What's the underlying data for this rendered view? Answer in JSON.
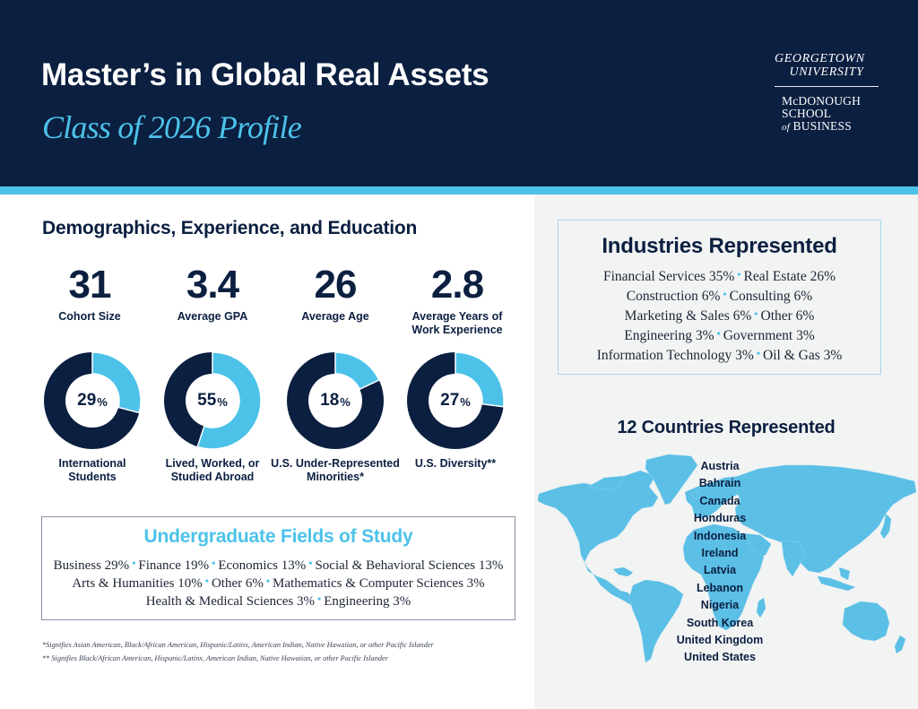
{
  "header": {
    "title": "Master’s in Global Real Assets",
    "subtitle": "Class of 2026 Profile",
    "logo": {
      "university_line1": "GEORGETOWN",
      "university_line2": "UNIVERSITY",
      "school_line1": "McDONOUGH",
      "school_line2": "SCHOOL",
      "school_line3_of": "of",
      "school_line3": "BUSINESS"
    }
  },
  "colors": {
    "navy": "#0b1f40",
    "accent_blue": "#4cc2e9",
    "panel_grey": "#f2f3f3"
  },
  "demographics": {
    "title": "Demographics, Experience, and Education",
    "stats": [
      {
        "value": "31",
        "label": "Cohort Size"
      },
      {
        "value": "3.4",
        "label": "Average GPA"
      },
      {
        "value": "26",
        "label": "Average Age"
      },
      {
        "value": "2.8",
        "label_line1": "Average Years of",
        "label_line2": "Work Experience"
      }
    ],
    "donuts": [
      {
        "value": "29",
        "unit": "%",
        "label_line1": "International",
        "label_line2": "Students"
      },
      {
        "value": "55",
        "unit": "%",
        "label_line1": "Lived, Worked, or",
        "label_line2": "Studied Abroad"
      },
      {
        "value": "18",
        "unit": "%",
        "label_line1": "U.S. Under-Represented",
        "label_line2": "Minorities*"
      },
      {
        "value": "27",
        "unit": "%",
        "label_line1": "U.S. Diversity**",
        "label_line2": ""
      }
    ]
  },
  "chart_data": {
    "type": "pie",
    "variant": "donut",
    "title": "Demographics, Experience, and Education",
    "categories": [
      "International Students",
      "Lived, Worked, or Studied Abroad",
      "U.S. Under-Represented Minorities*",
      "U.S. Diversity**"
    ],
    "values": [
      29,
      55,
      18,
      27
    ],
    "unit": "%",
    "highlight_color": "#4cc2e9",
    "remainder_color": "#0b1f40"
  },
  "fields_of_study": {
    "title": "Undergraduate Fields of Study",
    "lines": [
      [
        "Business 29%",
        "Finance 19%",
        "Economics 13%",
        "Social & Behavioral Sciences 13%"
      ],
      [
        "Arts & Humanities 10%",
        "Other 6%",
        "Mathematics & Computer Sciences 3%"
      ],
      [
        "Health & Medical Sciences 3%",
        "Engineering 3%"
      ]
    ]
  },
  "footnotes": {
    "single": "*Signifies Asian American, Black/African American, Hispanic/Latinx, American Indian, Native Hawaiian, or other Pacific Islander",
    "double": "** Signifies Black/African American, Hispanic/Latinx, American Indian, Native Hawaiian, or other Pacific Islander"
  },
  "industries": {
    "title": "Industries Represented",
    "lines": [
      [
        "Financial Services 35%",
        "Real Estate 26%"
      ],
      [
        "Construction 6%",
        "Consulting 6%"
      ],
      [
        "Marketing & Sales 6%",
        "Other 6%"
      ],
      [
        "Engineering 3%",
        "Government 3%"
      ],
      [
        "Information Technology 3%",
        "Oil & Gas 3%"
      ]
    ]
  },
  "countries": {
    "title": "12 Countries Represented",
    "list": [
      "Austria",
      "Bahrain",
      "Canada",
      "Honduras",
      "Indonesia",
      "Ireland",
      "Latvia",
      "Lebanon",
      "Nigeria",
      "South Korea",
      "United Kingdom",
      "United States"
    ]
  }
}
